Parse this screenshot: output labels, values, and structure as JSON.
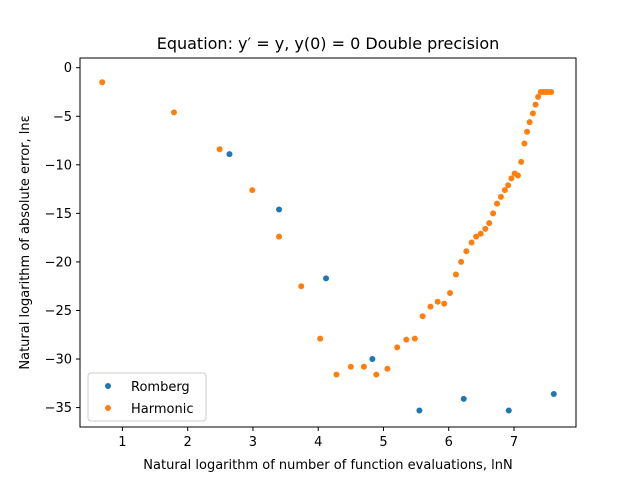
{
  "chart_data": {
    "type": "scatter",
    "title": "Equation: y′ = y, y(0) = 0 Double precision",
    "xlabel": "Natural logarithm of number of function evaluations, lnN",
    "ylabel": "Natural logarithm of absolute error, lnε",
    "xlim": [
      0.35,
      7.95
    ],
    "ylim": [
      -37,
      1
    ],
    "xticks": [
      1,
      2,
      3,
      4,
      5,
      6,
      7
    ],
    "yticks": [
      0,
      -5,
      -10,
      -15,
      -20,
      -25,
      -30,
      -35
    ],
    "grid": false,
    "legend_position": "bottom-left",
    "series": [
      {
        "name": "Romberg",
        "color": "#1f77b4",
        "x": [
          2.64,
          3.4,
          4.12,
          4.83,
          5.55,
          6.23,
          6.92,
          7.61
        ],
        "y": [
          -8.9,
          -14.6,
          -21.7,
          -30.0,
          -35.3,
          -34.1,
          -35.3,
          -33.6
        ]
      },
      {
        "name": "Harmonic",
        "color": "#ff7f0e",
        "x": [
          0.69,
          1.79,
          2.49,
          2.99,
          3.4,
          3.74,
          4.03,
          4.28,
          4.5,
          4.7,
          4.89,
          5.06,
          5.21,
          5.35,
          5.48,
          5.6,
          5.72,
          5.83,
          5.93,
          6.02,
          6.11,
          6.19,
          6.27,
          6.35,
          6.42,
          6.49,
          6.56,
          6.62,
          6.68,
          6.74,
          6.8,
          6.86,
          6.91,
          6.96,
          7.01,
          7.06,
          7.11,
          7.16,
          7.2,
          7.24,
          7.29,
          7.33,
          7.37,
          7.41,
          7.45,
          7.49,
          7.53,
          7.57
        ],
        "y": [
          -1.5,
          -4.6,
          -8.4,
          -12.6,
          -17.4,
          -22.5,
          -27.9,
          -31.6,
          -30.8,
          -30.8,
          -31.6,
          -31.0,
          -28.8,
          -28.0,
          -27.9,
          -25.6,
          -24.6,
          -24.1,
          -24.3,
          -23.2,
          -21.3,
          -20.0,
          -18.9,
          -18.0,
          -17.4,
          -17.1,
          -16.6,
          -16.0,
          -15.0,
          -14.0,
          -13.3,
          -12.6,
          -12.1,
          -11.4,
          -10.9,
          -11.1,
          -9.7,
          -7.8,
          -6.6,
          -5.6,
          -4.7,
          -3.8,
          -3.0,
          -2.5,
          -2.5,
          -2.5,
          -2.5,
          -2.5
        ]
      }
    ]
  }
}
